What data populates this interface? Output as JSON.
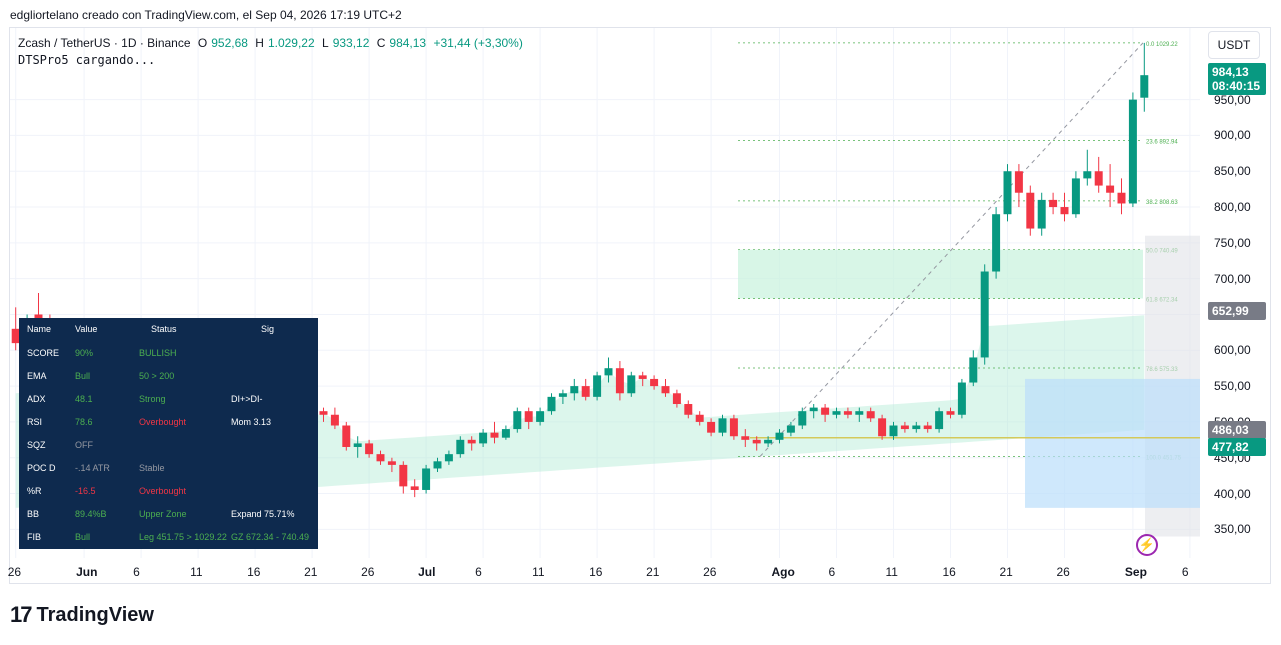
{
  "caption": "edgliortelano creado con TradingView.com, el Sep 04, 2026 17:19 UTC+2",
  "legend": {
    "symbol": "Zcash / TetherUS · 1D · Binance",
    "o_label": "O",
    "o_val": "952,68",
    "h_label": "H",
    "h_val": "1.029,22",
    "l_label": "L",
    "l_val": "933,12",
    "c_label": "C",
    "c_val": "984,13",
    "change": "+31,44 (+3,30%)",
    "indicator": "DTSPro5 cargando..."
  },
  "currency": "USDT",
  "price_badge": {
    "price": "984,13",
    "countdown": "08:40:15"
  },
  "level_badges": [
    "652,99",
    "486,03",
    "477,82"
  ],
  "colors": {
    "up": "#089981",
    "down": "#f23645",
    "table_bg": "#0e2a4e",
    "cloud": "#b2ead4"
  },
  "footer_logo": "TradingView",
  "table": {
    "headers": [
      "Name",
      "Value",
      "Status",
      "Sig"
    ],
    "rows": [
      [
        "SCORE",
        "90%",
        "BULLISH",
        ""
      ],
      [
        "EMA",
        "Bull",
        "50 > 200",
        ""
      ],
      [
        "ADX",
        "48.1",
        "Strong",
        "DI+>DI-"
      ],
      [
        "RSI",
        "78.6",
        "Overbought",
        "Mom 3.13"
      ],
      [
        "SQZ",
        "OFF",
        "",
        ""
      ],
      [
        "POC D",
        "-.14 ATR",
        "Stable",
        ""
      ],
      [
        "%R",
        "-16.5",
        "Overbought",
        ""
      ],
      [
        "BB",
        "89.4%B",
        "Upper Zone",
        "Expand 75.71%"
      ],
      [
        "FIB",
        "Bull",
        "Leg 451.75 > 1029.22",
        "GZ 672.34 - 740.49"
      ]
    ]
  },
  "chart_data": {
    "type": "candlestick",
    "y_ticks": [
      "950,00",
      "900,00",
      "850,00",
      "800,00",
      "750,00",
      "700,00",
      "650,00",
      "600,00",
      "550,00",
      "500,00",
      "450,00",
      "400,00",
      "350,00"
    ],
    "y_tick_values": [
      950,
      900,
      850,
      800,
      750,
      700,
      650,
      600,
      550,
      500,
      450,
      400,
      350
    ],
    "ylim": [
      310,
      1050
    ],
    "x_ticks": [
      {
        "label": "26",
        "month": false,
        "idx": 0
      },
      {
        "label": "Jun",
        "month": true,
        "idx": 6
      },
      {
        "label": "6",
        "month": false,
        "idx": 11
      },
      {
        "label": "11",
        "month": false,
        "idx": 16
      },
      {
        "label": "16",
        "month": false,
        "idx": 21
      },
      {
        "label": "21",
        "month": false,
        "idx": 26
      },
      {
        "label": "26",
        "month": false,
        "idx": 31
      },
      {
        "label": "Jul",
        "month": true,
        "idx": 36
      },
      {
        "label": "6",
        "month": false,
        "idx": 41
      },
      {
        "label": "11",
        "month": false,
        "idx": 46
      },
      {
        "label": "16",
        "month": false,
        "idx": 51
      },
      {
        "label": "21",
        "month": false,
        "idx": 56
      },
      {
        "label": "26",
        "month": false,
        "idx": 61
      },
      {
        "label": "Ago",
        "month": true,
        "idx": 67
      },
      {
        "label": "6",
        "month": false,
        "idx": 72
      },
      {
        "label": "11",
        "month": false,
        "idx": 77
      },
      {
        "label": "16",
        "month": false,
        "idx": 82
      },
      {
        "label": "21",
        "month": false,
        "idx": 87
      },
      {
        "label": "26",
        "month": false,
        "idx": 92
      },
      {
        "label": "Sep",
        "month": true,
        "idx": 98
      },
      {
        "label": "6",
        "month": false,
        "idx": 103
      }
    ],
    "fib_levels": [
      {
        "ratio": "0.0",
        "price": 1029.22
      },
      {
        "ratio": "23.6",
        "price": 892.94
      },
      {
        "ratio": "38.2",
        "price": 808.63
      },
      {
        "ratio": "50.0",
        "price": 740.49
      },
      {
        "ratio": "61.8",
        "price": 672.34
      },
      {
        "ratio": "78.6",
        "price": 575.33
      },
      {
        "ratio": "100.0",
        "price": 451.75
      }
    ],
    "candles": [
      [
        630,
        660,
        600,
        610
      ],
      [
        640,
        650,
        625,
        645
      ],
      [
        650,
        680,
        620,
        640
      ],
      [
        640,
        650,
        590,
        600
      ],
      [
        600,
        610,
        570,
        575
      ],
      [
        575,
        585,
        540,
        550
      ],
      [
        550,
        560,
        520,
        530
      ],
      [
        530,
        545,
        520,
        540
      ],
      [
        540,
        560,
        530,
        555
      ],
      [
        555,
        560,
        540,
        545
      ],
      [
        545,
        560,
        535,
        550
      ],
      [
        550,
        555,
        520,
        525
      ],
      [
        525,
        600,
        520,
        590
      ],
      [
        590,
        620,
        580,
        615
      ],
      [
        615,
        630,
        580,
        590
      ],
      [
        590,
        600,
        500,
        505
      ],
      [
        505,
        510,
        470,
        480
      ],
      [
        480,
        500,
        475,
        495
      ],
      [
        495,
        540,
        490,
        535
      ],
      [
        535,
        540,
        480,
        485
      ],
      [
        485,
        495,
        470,
        490
      ],
      [
        490,
        500,
        480,
        495
      ],
      [
        495,
        540,
        490,
        535
      ],
      [
        535,
        550,
        525,
        545
      ],
      [
        545,
        550,
        520,
        525
      ],
      [
        525,
        530,
        495,
        500
      ],
      [
        500,
        520,
        495,
        515
      ],
      [
        515,
        520,
        500,
        510
      ],
      [
        510,
        520,
        490,
        495
      ],
      [
        495,
        500,
        460,
        465
      ],
      [
        465,
        480,
        450,
        470
      ],
      [
        470,
        475,
        450,
        455
      ],
      [
        455,
        460,
        440,
        445
      ],
      [
        445,
        450,
        430,
        440
      ],
      [
        440,
        445,
        400,
        410
      ],
      [
        410,
        420,
        395,
        405
      ],
      [
        405,
        440,
        400,
        435
      ],
      [
        435,
        450,
        430,
        445
      ],
      [
        445,
        460,
        440,
        455
      ],
      [
        455,
        480,
        450,
        475
      ],
      [
        475,
        480,
        460,
        470
      ],
      [
        470,
        490,
        465,
        485
      ],
      [
        485,
        500,
        470,
        478
      ],
      [
        478,
        495,
        475,
        490
      ],
      [
        490,
        520,
        485,
        515
      ],
      [
        515,
        520,
        490,
        500
      ],
      [
        500,
        520,
        495,
        515
      ],
      [
        515,
        540,
        510,
        535
      ],
      [
        535,
        545,
        525,
        540
      ],
      [
        540,
        560,
        530,
        550
      ],
      [
        550,
        560,
        530,
        535
      ],
      [
        535,
        570,
        530,
        565
      ],
      [
        565,
        590,
        555,
        575
      ],
      [
        575,
        585,
        530,
        540
      ],
      [
        540,
        570,
        535,
        565
      ],
      [
        565,
        570,
        550,
        560
      ],
      [
        560,
        565,
        545,
        550
      ],
      [
        550,
        560,
        535,
        540
      ],
      [
        540,
        545,
        520,
        525
      ],
      [
        525,
        530,
        505,
        510
      ],
      [
        510,
        515,
        495,
        500
      ],
      [
        500,
        505,
        480,
        485
      ],
      [
        485,
        510,
        480,
        505
      ],
      [
        505,
        510,
        475,
        480
      ],
      [
        480,
        490,
        465,
        475
      ],
      [
        475,
        480,
        460,
        470
      ],
      [
        470,
        480,
        465,
        475
      ],
      [
        475,
        490,
        470,
        485
      ],
      [
        485,
        500,
        480,
        495
      ],
      [
        495,
        520,
        490,
        515
      ],
      [
        515,
        525,
        505,
        520
      ],
      [
        520,
        525,
        500,
        510
      ],
      [
        510,
        520,
        505,
        515
      ],
      [
        515,
        520,
        505,
        510
      ],
      [
        510,
        520,
        500,
        515
      ],
      [
        515,
        520,
        500,
        505
      ],
      [
        505,
        510,
        475,
        480
      ],
      [
        480,
        500,
        475,
        495
      ],
      [
        495,
        500,
        485,
        490
      ],
      [
        490,
        500,
        485,
        495
      ],
      [
        495,
        500,
        485,
        490
      ],
      [
        490,
        520,
        485,
        515
      ],
      [
        515,
        520,
        505,
        510
      ],
      [
        510,
        560,
        505,
        555
      ],
      [
        555,
        600,
        550,
        590
      ],
      [
        590,
        720,
        580,
        710
      ],
      [
        710,
        800,
        700,
        790
      ],
      [
        790,
        860,
        780,
        850
      ],
      [
        850,
        860,
        800,
        820
      ],
      [
        820,
        830,
        760,
        770
      ],
      [
        770,
        820,
        760,
        810
      ],
      [
        810,
        820,
        790,
        800
      ],
      [
        800,
        820,
        780,
        790
      ],
      [
        790,
        850,
        785,
        840
      ],
      [
        840,
        880,
        830,
        850
      ],
      [
        850,
        870,
        820,
        830
      ],
      [
        830,
        860,
        800,
        820
      ],
      [
        820,
        840,
        790,
        805
      ],
      [
        805,
        960,
        800,
        950
      ],
      [
        952.68,
        1029.22,
        933.12,
        984.13
      ]
    ]
  }
}
